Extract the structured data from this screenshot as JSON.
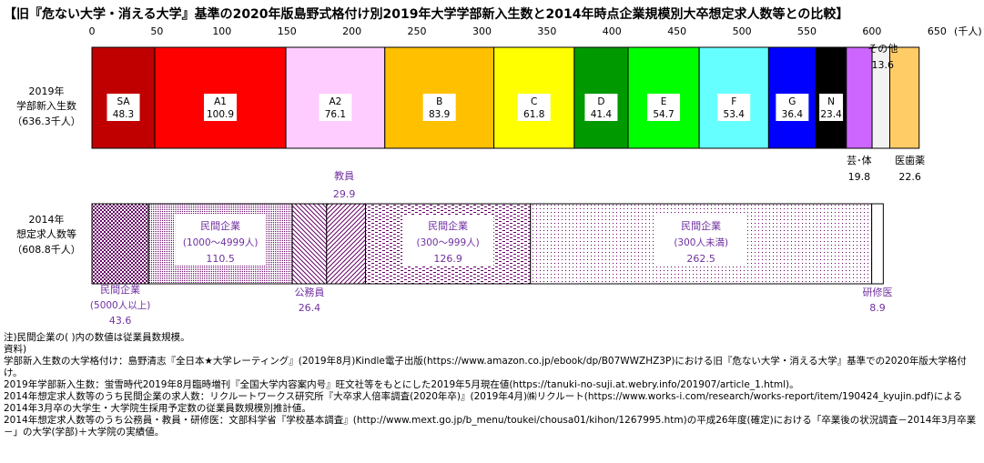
{
  "title": "【旧『危ない大学・消える大学』基準の2020年版島野式格付け別2019年大学学部新入生数と2014年時点企業規模別大卒想定求人数等との比較】",
  "colors": {
    "SA": "#c00000",
    "A1": "#ff0000",
    "A2": "#ffccff",
    "B": "#ffc000",
    "C": "#ffff00",
    "D": "#009900",
    "E": "#00ff00",
    "F": "#66ffff",
    "G": "#0000ff",
    "N": "#000000",
    "geitai": "#cc66ff",
    "sonota": "#f2f2f2",
    "ishiyaku": "#ffcc66",
    "purple_text": "#7030a0",
    "hatch": "#660066"
  },
  "chart_data": {
    "type": "bar",
    "orientation": "horizontal",
    "stacked": true,
    "x_ticks": [
      "0",
      "50",
      "100",
      "150",
      "200",
      "250",
      "300",
      "350",
      "400",
      "450",
      "500",
      "550",
      "600",
      "650"
    ],
    "x_unit": "(千人)",
    "xlim": [
      0,
      650
    ],
    "categories": [
      {
        "label_lines": [
          "2019年",
          "学部新入生数",
          "（636.3千人）"
        ],
        "segments": [
          {
            "key": "SA",
            "name": "SA",
            "value": 48.3,
            "value_label": "48.3"
          },
          {
            "key": "A1",
            "name": "A1",
            "value": 100.9,
            "value_label": "100.9"
          },
          {
            "key": "A2",
            "name": "A2",
            "value": 76.1,
            "value_label": "76.1"
          },
          {
            "key": "B",
            "name": "B",
            "value": 83.9,
            "value_label": "83.9"
          },
          {
            "key": "C",
            "name": "C",
            "value": 61.8,
            "value_label": "61.8"
          },
          {
            "key": "D",
            "name": "D",
            "value": 41.4,
            "value_label": "41.4"
          },
          {
            "key": "E",
            "name": "E",
            "value": 54.7,
            "value_label": "54.7"
          },
          {
            "key": "F",
            "name": "F",
            "value": 53.4,
            "value_label": "53.4"
          },
          {
            "key": "G",
            "name": "G",
            "value": 36.4,
            "value_label": "36.4"
          },
          {
            "key": "N",
            "name": "N",
            "value": 23.4,
            "value_label": "23.4"
          },
          {
            "key": "geitai",
            "name": "芸･体",
            "value": 19.8,
            "value_label": "19.8"
          },
          {
            "key": "sonota",
            "name": "その他",
            "value": 13.6,
            "value_label": "13.6"
          },
          {
            "key": "ishiyaku",
            "name": "医歯薬",
            "value": 22.6,
            "value_label": "22.6"
          }
        ]
      },
      {
        "label_lines": [
          "2014年",
          "想定求人数等",
          "（608.8千人）"
        ],
        "segments": [
          {
            "key": "min5000",
            "name": "民間企業",
            "sub": "(5000人以上)",
            "value": 43.6,
            "value_label": "43.6",
            "pattern": "checker"
          },
          {
            "key": "min1000",
            "name": "民間企業",
            "sub": "(1000～4999人)",
            "value": 110.5,
            "value_label": "110.5",
            "pattern": "small-checker"
          },
          {
            "key": "koumuin",
            "name": "公務員",
            "value": 26.4,
            "value_label": "26.4",
            "pattern": "back-diag"
          },
          {
            "key": "kyouin",
            "name": "教員",
            "value": 29.9,
            "value_label": "29.9",
            "pattern": "fwd-diag"
          },
          {
            "key": "min300",
            "name": "民間企業",
            "sub": "(300～999人)",
            "value": 126.9,
            "value_label": "126.9",
            "pattern": "dash"
          },
          {
            "key": "minless300",
            "name": "民間企業",
            "sub": "(300人未満)",
            "value": 262.5,
            "value_label": "262.5",
            "pattern": "dots"
          },
          {
            "key": "kenshui",
            "name": "研修医",
            "value": 8.9,
            "value_label": "8.9",
            "pattern": "none"
          }
        ]
      }
    ]
  },
  "notes": [
    "注)民間企業の( )内の数値は従業員数規模。",
    "資料)",
    "学部新入生数の大学格付け：島野清志『全日本★大学レーティング』(2019年8月)Kindle電子出版(https://www.amazon.co.jp/ebook/dp/B07WWZHZ3P)における旧『危ない大学・消える大学』基準での2020年版大学格付け。",
    "2019年学部新入生数：蛍雪時代2019年8月臨時増刊『全国大学内容案内号』旺文社等をもとにした2019年5月現在値(https://tanuki-no-suji.at.webry.info/201907/article_1.html)。",
    "2014年想定求人数等のうち民間企業の求人数：リクルートワークス研究所『大卒求人倍率調査(2020年卒)』(2019年4月)㈱リクルート(https://www.works-i.com/research/works-report/item/190424_kyujin.pdf)による2014年3月卒の大学生・大学院生採用予定数の従業員数規模別推計値。",
    "2014年想定求人数等のうち公務員・教員・研修医：文部科学省『学校基本調査』(http://www.mext.go.jp/b_menu/toukei/chousa01/kihon/1267995.htm)の平成26年度(確定)における「卒業後の状況調査－2014年3月卒業－」の大学(学部)＋大学院の実績値。"
  ]
}
